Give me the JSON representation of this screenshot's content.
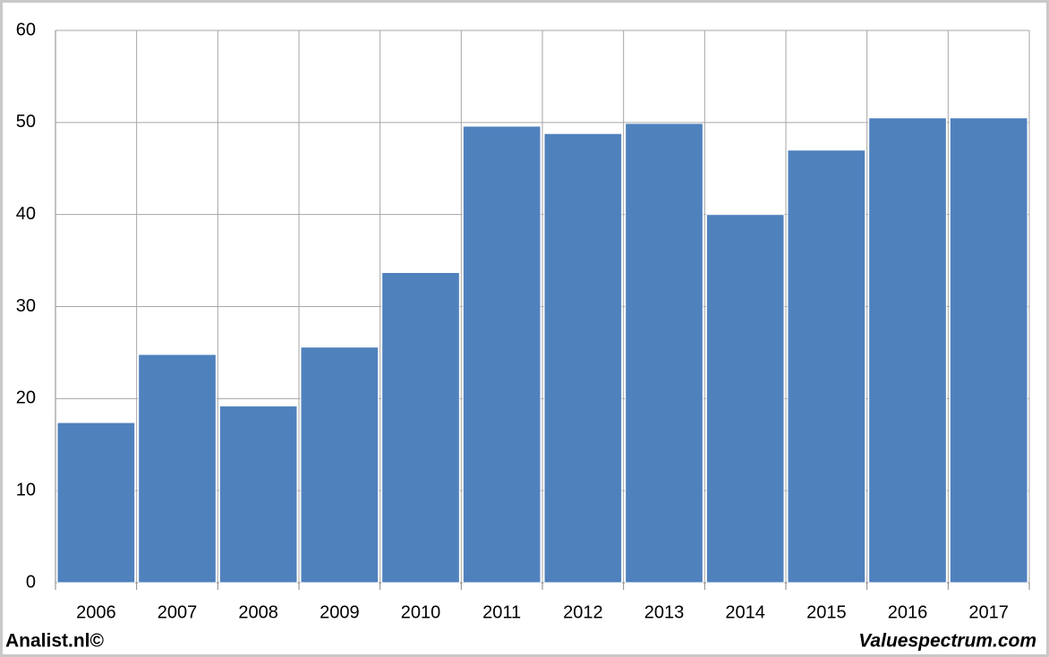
{
  "chart_data": {
    "type": "bar",
    "categories": [
      "2006",
      "2007",
      "2008",
      "2009",
      "2010",
      "2011",
      "2012",
      "2013",
      "2014",
      "2015",
      "2016",
      "2017"
    ],
    "values": [
      17.4,
      24.8,
      19.2,
      25.6,
      33.7,
      49.6,
      48.8,
      49.9,
      40.0,
      47.0,
      50.5,
      50.5
    ],
    "color": "#4f81bd",
    "ylim": [
      0,
      60
    ],
    "yticks": [
      0,
      10,
      20,
      30,
      40,
      50,
      60
    ],
    "grid": true,
    "footer_left": "Analist.nl©",
    "footer_right": "Valuespectrum.com"
  }
}
